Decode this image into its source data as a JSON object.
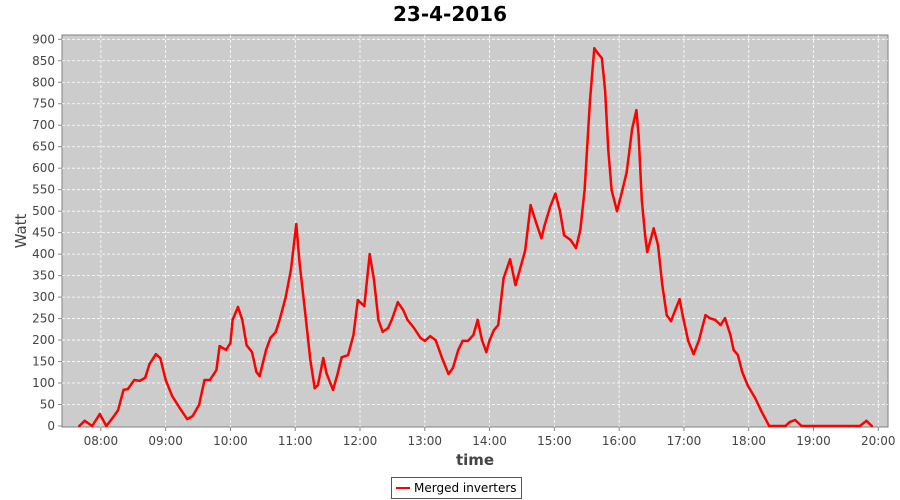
{
  "chart_data": {
    "type": "line",
    "title": "23-4-2016",
    "xlabel": "time",
    "ylabel": "Watt",
    "xlim": [
      "07:24",
      "20:09"
    ],
    "ylim": [
      0,
      910
    ],
    "x_ticks": [
      "08:00",
      "09:00",
      "10:00",
      "11:00",
      "12:00",
      "13:00",
      "14:00",
      "15:00",
      "16:00",
      "17:00",
      "18:00",
      "19:00",
      "20:00"
    ],
    "y_ticks": [
      0,
      50,
      100,
      150,
      200,
      250,
      300,
      350,
      400,
      450,
      500,
      550,
      600,
      650,
      700,
      750,
      800,
      850,
      900
    ],
    "grid": true,
    "legend_position": "bottom",
    "background": "#cccccc",
    "series": [
      {
        "name": "Merged inverters",
        "color": "#ff0000",
        "points": [
          [
            "07:40",
            0
          ],
          [
            "07:45",
            12
          ],
          [
            "07:52",
            0
          ],
          [
            "07:59",
            28
          ],
          [
            "08:05",
            0
          ],
          [
            "08:11",
            19
          ],
          [
            "08:16",
            37
          ],
          [
            "08:21",
            84
          ],
          [
            "08:25",
            86
          ],
          [
            "08:31",
            107
          ],
          [
            "08:36",
            105
          ],
          [
            "08:41",
            112
          ],
          [
            "08:45",
            144
          ],
          [
            "08:51",
            167
          ],
          [
            "08:55",
            158
          ],
          [
            "09:00",
            107
          ],
          [
            "09:06",
            70
          ],
          [
            "09:13",
            42
          ],
          [
            "09:20",
            16
          ],
          [
            "09:25",
            23
          ],
          [
            "09:31",
            49
          ],
          [
            "09:36",
            107
          ],
          [
            "09:41",
            107
          ],
          [
            "09:47",
            130
          ],
          [
            "09:50",
            186
          ],
          [
            "09:56",
            177
          ],
          [
            "10:00",
            193
          ],
          [
            "10:02",
            247
          ],
          [
            "10:07",
            277
          ],
          [
            "10:11",
            247
          ],
          [
            "10:15",
            188
          ],
          [
            "10:20",
            172
          ],
          [
            "10:24",
            126
          ],
          [
            "10:27",
            116
          ],
          [
            "10:33",
            177
          ],
          [
            "10:37",
            205
          ],
          [
            "10:42",
            219
          ],
          [
            "10:46",
            251
          ],
          [
            "10:51",
            298
          ],
          [
            "10:56",
            363
          ],
          [
            "11:01",
            470
          ],
          [
            "11:04",
            381
          ],
          [
            "11:09",
            270
          ],
          [
            "11:14",
            154
          ],
          [
            "11:18",
            88
          ],
          [
            "11:21",
            95
          ],
          [
            "11:26",
            158
          ],
          [
            "11:29",
            123
          ],
          [
            "11:35",
            84
          ],
          [
            "11:39",
            119
          ],
          [
            "11:43",
            160
          ],
          [
            "11:49",
            165
          ],
          [
            "11:54",
            212
          ],
          [
            "11:58",
            293
          ],
          [
            "12:04",
            279
          ],
          [
            "12:09",
            400
          ],
          [
            "12:13",
            340
          ],
          [
            "12:17",
            247
          ],
          [
            "12:21",
            219
          ],
          [
            "12:26",
            228
          ],
          [
            "12:30",
            251
          ],
          [
            "12:35",
            288
          ],
          [
            "12:40",
            270
          ],
          [
            "12:44",
            247
          ],
          [
            "12:50",
            228
          ],
          [
            "12:56",
            205
          ],
          [
            "13:00",
            198
          ],
          [
            "13:05",
            209
          ],
          [
            "13:10",
            200
          ],
          [
            "13:16",
            158
          ],
          [
            "13:22",
            121
          ],
          [
            "13:26",
            135
          ],
          [
            "13:31",
            177
          ],
          [
            "13:35",
            198
          ],
          [
            "13:40",
            198
          ],
          [
            "13:45",
            212
          ],
          [
            "13:49",
            247
          ],
          [
            "13:53",
            200
          ],
          [
            "13:57",
            172
          ],
          [
            "14:00",
            200
          ],
          [
            "14:04",
            223
          ],
          [
            "14:08",
            235
          ],
          [
            "14:13",
            344
          ],
          [
            "14:19",
            388
          ],
          [
            "14:24",
            328
          ],
          [
            "14:28",
            363
          ],
          [
            "14:33",
            409
          ],
          [
            "14:38",
            514
          ],
          [
            "14:43",
            474
          ],
          [
            "14:48",
            437
          ],
          [
            "14:51",
            467
          ],
          [
            "14:56",
            509
          ],
          [
            "15:01",
            541
          ],
          [
            "15:05",
            502
          ],
          [
            "15:09",
            444
          ],
          [
            "15:15",
            433
          ],
          [
            "15:20",
            414
          ],
          [
            "15:24",
            456
          ],
          [
            "15:28",
            549
          ],
          [
            "15:33",
            758
          ],
          [
            "15:37",
            879
          ],
          [
            "15:40",
            868
          ],
          [
            "15:44",
            856
          ],
          [
            "15:47",
            781
          ],
          [
            "15:50",
            642
          ],
          [
            "15:53",
            549
          ],
          [
            "15:58",
            500
          ],
          [
            "16:03",
            549
          ],
          [
            "16:07",
            591
          ],
          [
            "16:12",
            691
          ],
          [
            "16:16",
            735
          ],
          [
            "16:18",
            677
          ],
          [
            "16:21",
            526
          ],
          [
            "16:24",
            444
          ],
          [
            "16:26",
            405
          ],
          [
            "16:29",
            433
          ],
          [
            "16:32",
            460
          ],
          [
            "16:36",
            421
          ],
          [
            "16:40",
            328
          ],
          [
            "16:44",
            258
          ],
          [
            "16:48",
            244
          ],
          [
            "16:52",
            270
          ],
          [
            "16:56",
            295
          ],
          [
            "16:59",
            256
          ],
          [
            "17:04",
            198
          ],
          [
            "17:09",
            167
          ],
          [
            "17:14",
            200
          ],
          [
            "17:20",
            258
          ],
          [
            "17:24",
            251
          ],
          [
            "17:29",
            247
          ],
          [
            "17:34",
            235
          ],
          [
            "17:38",
            251
          ],
          [
            "17:43",
            212
          ],
          [
            "17:46",
            177
          ],
          [
            "17:50",
            165
          ],
          [
            "17:54",
            126
          ],
          [
            "17:59",
            95
          ],
          [
            "18:06",
            65
          ],
          [
            "18:12",
            33
          ],
          [
            "18:19",
            0
          ],
          [
            "18:34",
            0
          ],
          [
            "18:38",
            9
          ],
          [
            "18:43",
            14
          ],
          [
            "18:49",
            0
          ],
          [
            "19:43",
            0
          ],
          [
            "19:49",
            12
          ],
          [
            "19:54",
            0
          ]
        ]
      }
    ]
  }
}
